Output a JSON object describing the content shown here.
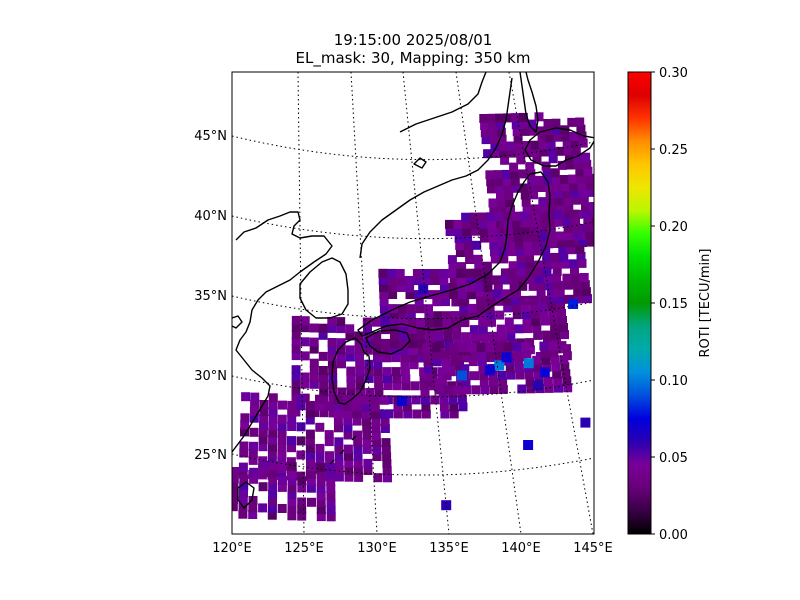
{
  "title": {
    "line1": "19:15:00 2025/08/01",
    "line2": "EL_mask: 30, Mapping: 350 km"
  },
  "axes": {
    "x_ticks": [
      "120°E",
      "125°E",
      "130°E",
      "135°E",
      "140°E",
      "145°E"
    ],
    "y_ticks": [
      "45°N",
      "40°N",
      "35°N",
      "30°N",
      "25°N"
    ],
    "lon_range": [
      120,
      145
    ],
    "lat_range": [
      20,
      49
    ]
  },
  "colorbar": {
    "label": "ROTI [TECU/min]",
    "ticks": [
      "0.00",
      "0.05",
      "0.10",
      "0.15",
      "0.20",
      "0.25",
      "0.30"
    ],
    "range": [
      0,
      0.3
    ],
    "colormap": "nipy_spectral"
  },
  "map": {
    "projection": "conic",
    "gridline_style": "dotted",
    "background_roti": 0.04,
    "hotspots": [
      {
        "lon": 136.8,
        "lat": 30.5,
        "roti": 0.1
      },
      {
        "lon": 138.6,
        "lat": 30.6,
        "roti": 0.1
      },
      {
        "lon": 134.5,
        "lat": 29.9,
        "roti": 0.09
      },
      {
        "lon": 139.5,
        "lat": 30.0,
        "roti": 0.07
      },
      {
        "lon": 137.3,
        "lat": 31.0,
        "roti": 0.07
      },
      {
        "lon": 141.8,
        "lat": 34.2,
        "roti": 0.08
      },
      {
        "lon": 136.2,
        "lat": 30.2,
        "roti": 0.07
      },
      {
        "lon": 132.5,
        "lat": 35.3,
        "roti": 0.06
      },
      {
        "lon": 138.0,
        "lat": 25.5,
        "roti": 0.07
      },
      {
        "lon": 141.5,
        "lat": 26.8,
        "roti": 0.06
      },
      {
        "lon": 142.5,
        "lat": 23.2,
        "roti": 0.06
      },
      {
        "lon": 130.8,
        "lat": 28.3,
        "roti": 0.07
      },
      {
        "lon": 133.0,
        "lat": 21.8,
        "roti": 0.06
      },
      {
        "lon": 139.0,
        "lat": 29.2,
        "roti": 0.06
      }
    ]
  }
}
